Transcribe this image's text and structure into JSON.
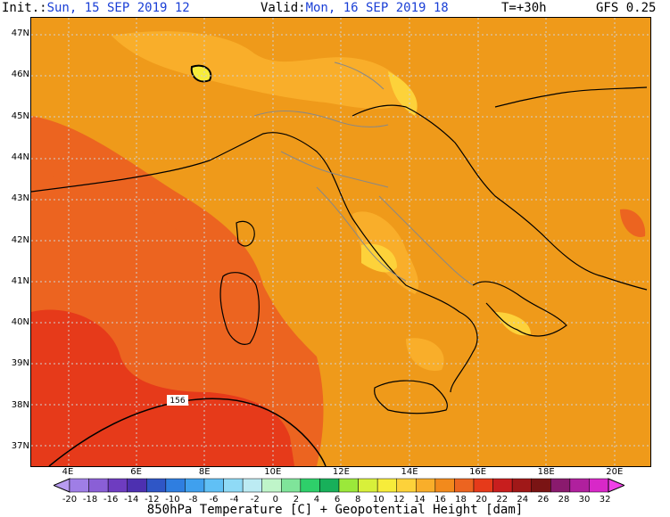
{
  "header": {
    "init_label": "Init.:",
    "init_value": "Sun, 15 SEP 2019  12",
    "valid_label": "Valid:",
    "valid_value": "Mon, 16 SEP 2019  18",
    "lead": "T=+30h",
    "model": "GFS 0.25"
  },
  "map": {
    "lat_labels": [
      "47N",
      "46N",
      "45N",
      "44N",
      "43N",
      "42N",
      "41N",
      "40N",
      "39N",
      "38N",
      "37N"
    ],
    "lon_labels": [
      "4E",
      "6E",
      "8E",
      "10E",
      "12E",
      "14E",
      "16E",
      "18E",
      "20E"
    ],
    "contour_label": "156"
  },
  "colorbar": {
    "ticks": [
      "-20",
      "-18",
      "-16",
      "-14",
      "-12",
      "-10",
      "-8",
      "-6",
      "-4",
      "-2",
      "0",
      "2",
      "4",
      "6",
      "8",
      "10",
      "12",
      "14",
      "16",
      "18",
      "20",
      "22",
      "24",
      "26",
      "28",
      "30",
      "32"
    ],
    "colors": [
      "#b89cf0",
      "#9f7ee6",
      "#8a5fd6",
      "#6e3cc0",
      "#4d30b0",
      "#2f56c6",
      "#2f7ee0",
      "#3fa0ee",
      "#60c0f5",
      "#8fdaf6",
      "#bcebf3",
      "#bff5c9",
      "#7fe49a",
      "#2ecf6a",
      "#18b05a",
      "#9be83a",
      "#d8f03a",
      "#f7ec3a",
      "#fdd23a",
      "#f9ae2a",
      "#f28a1c",
      "#ec6420",
      "#e63a1a",
      "#c81e1e",
      "#a01818",
      "#7a1414",
      "#8a1a6e",
      "#b0209e",
      "#d828c8",
      "#f040e8"
    ],
    "caption": "850hPa Temperature [C] + Geopotential Height [dam]"
  },
  "colors": {
    "label_blue": "#1a3fd6"
  }
}
